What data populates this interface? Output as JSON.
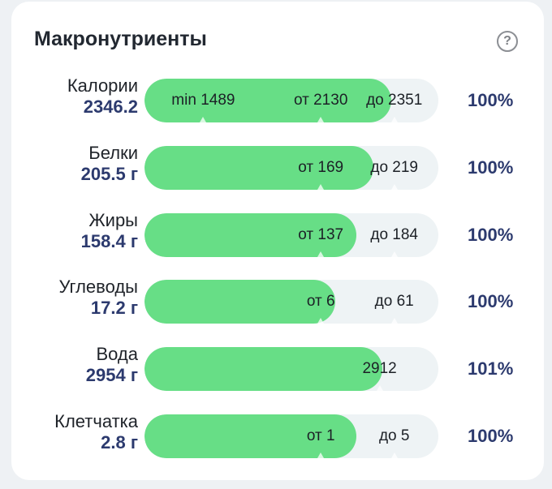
{
  "title": "Макронутриенты",
  "help_icon": "question-circle-icon",
  "rows": [
    {
      "name": "Калории",
      "value": "2346.2",
      "fill_pct": 84,
      "markers": [
        {
          "text": "min 1489",
          "pos_pct": 20,
          "tick": true
        },
        {
          "text": "от 2130",
          "pos_pct": 60,
          "tick": true
        },
        {
          "text": "до 2351",
          "pos_pct": 85,
          "tick": true
        }
      ],
      "percent": "100%"
    },
    {
      "name": "Белки",
      "value": "205.5 г",
      "fill_pct": 78,
      "markers": [
        {
          "text": "от 169",
          "pos_pct": 60,
          "tick": true
        },
        {
          "text": "до 219",
          "pos_pct": 85,
          "tick": true
        }
      ],
      "percent": "100%"
    },
    {
      "name": "Жиры",
      "value": "158.4 г",
      "fill_pct": 72,
      "markers": [
        {
          "text": "от 137",
          "pos_pct": 60,
          "tick": true
        },
        {
          "text": "до 184",
          "pos_pct": 85,
          "tick": true
        }
      ],
      "percent": "100%"
    },
    {
      "name": "Углеводы",
      "value": "17.2 г",
      "fill_pct": 65,
      "markers": [
        {
          "text": "от 6",
          "pos_pct": 60,
          "tick": true
        },
        {
          "text": "до 61",
          "pos_pct": 85,
          "tick": true
        }
      ],
      "percent": "100%"
    },
    {
      "name": "Вода",
      "value": "2954 г",
      "fill_pct": 81,
      "markers": [
        {
          "text": "2912",
          "pos_pct": 80,
          "tick": true
        }
      ],
      "percent": "101%"
    },
    {
      "name": "Клетчатка",
      "value": "2.8 г",
      "fill_pct": 72,
      "markers": [
        {
          "text": "от 1",
          "pos_pct": 60,
          "tick": true
        },
        {
          "text": "до 5",
          "pos_pct": 85,
          "tick": true
        }
      ],
      "percent": "100%"
    }
  ],
  "colors": {
    "fill": "#67de86",
    "track": "#eef3f5",
    "value_text": "#2c3a6e"
  }
}
